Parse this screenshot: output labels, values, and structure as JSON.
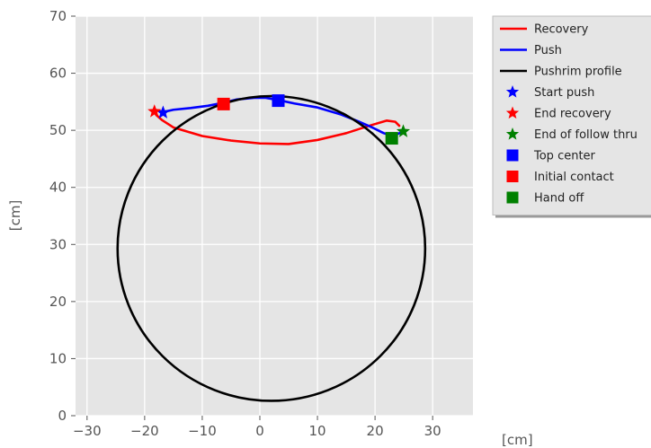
{
  "chart_data": {
    "type": "line",
    "title": "",
    "xlabel": "[cm]",
    "ylabel": "[cm]",
    "xlim": [
      -32,
      37
    ],
    "ylim": [
      0,
      70
    ],
    "xticks": [
      -30,
      -20,
      -10,
      0,
      10,
      20,
      30
    ],
    "yticks": [
      0,
      10,
      20,
      30,
      40,
      50,
      60,
      70
    ],
    "grid": true,
    "legend_position": "outside-right",
    "series": [
      {
        "name": "Recovery",
        "kind": "line",
        "color": "#ff0000",
        "x": [
          24.2,
          23.5,
          22.0,
          19.0,
          15.0,
          10.0,
          5.0,
          0.0,
          -5.0,
          -10.0,
          -15.0,
          -17.0,
          -18.0,
          -18.3
        ],
        "y": [
          50.8,
          51.5,
          51.7,
          50.8,
          49.5,
          48.3,
          47.6,
          47.7,
          48.2,
          49.0,
          50.5,
          51.8,
          52.7,
          53.2
        ]
      },
      {
        "name": "Push",
        "kind": "line",
        "color": "#0000ff",
        "x": [
          -16.8,
          -15.0,
          -12.0,
          -9.0,
          -6.5,
          -4.0,
          -1.0,
          1.0,
          3.2,
          6.0,
          10.0,
          14.0,
          17.0,
          19.5,
          21.5,
          23.0,
          24.5
        ],
        "y": [
          53.2,
          53.6,
          53.9,
          54.3,
          54.8,
          55.4,
          55.7,
          55.7,
          55.3,
          54.7,
          54.0,
          52.8,
          51.6,
          50.5,
          49.5,
          49.0,
          49.6
        ]
      },
      {
        "name": "Pushrim profile",
        "kind": "circle",
        "color": "#000000",
        "center": [
          2,
          29.3
        ],
        "radius": 26.7
      },
      {
        "name": "Start push",
        "kind": "marker",
        "marker": "star",
        "color": "#0000ff",
        "x": -16.8,
        "y": 53.1
      },
      {
        "name": "End recovery",
        "kind": "marker",
        "marker": "star",
        "color": "#ff0000",
        "x": -18.3,
        "y": 53.3
      },
      {
        "name": "End of follow thru",
        "kind": "marker",
        "marker": "star",
        "color": "#008000",
        "x": 24.9,
        "y": 49.8
      },
      {
        "name": "Top center",
        "kind": "marker",
        "marker": "square",
        "color": "#0000ff",
        "x": 3.2,
        "y": 55.2
      },
      {
        "name": "Initial contact",
        "kind": "marker",
        "marker": "square",
        "color": "#ff0000",
        "x": -6.3,
        "y": 54.6
      },
      {
        "name": "Hand off",
        "kind": "marker",
        "marker": "square",
        "color": "#008000",
        "x": 22.9,
        "y": 48.6
      }
    ]
  },
  "colors": {
    "plot_background": "#e5e5e5",
    "grid": "#ffffff",
    "tick_text": "#555555"
  }
}
